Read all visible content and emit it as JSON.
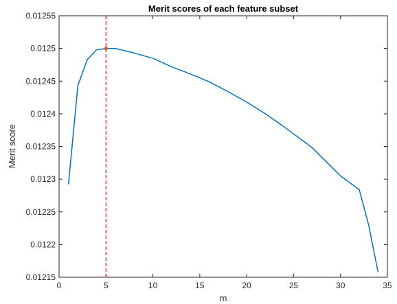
{
  "chart_data": {
    "type": "line",
    "title": "Merit scores of each feature subset",
    "xlabel": "m",
    "ylabel": "Merit score",
    "xlim": [
      0,
      35
    ],
    "ylim": [
      0.01215,
      0.01255
    ],
    "xticks": [
      "0",
      "5",
      "10",
      "15",
      "20",
      "25",
      "30",
      "35"
    ],
    "yticks": [
      "0.01215",
      "0.0122",
      "0.01225",
      "0.0123",
      "0.01235",
      "0.0124",
      "0.01245",
      "0.0125",
      "0.01255"
    ],
    "grid": false,
    "series": [
      {
        "color": "#0072bd",
        "x": [
          1,
          2,
          3,
          4,
          5,
          6,
          8,
          10,
          12,
          14,
          16,
          18,
          20,
          22,
          24,
          27,
          30,
          32,
          33,
          34
        ],
        "y": [
          0.012292,
          0.012443,
          0.012483,
          0.012498,
          0.0125,
          0.0125,
          0.012493,
          0.012485,
          0.012472,
          0.012461,
          0.012449,
          0.012434,
          0.012418,
          0.0124,
          0.01238,
          0.012348,
          0.012305,
          0.012284,
          0.01223,
          0.012158
        ]
      }
    ],
    "annotations": [
      {
        "type": "vline",
        "x": 5,
        "color": "#d62728",
        "style": "dashed"
      },
      {
        "type": "point",
        "x": 5,
        "y": 0.0125,
        "color": "#d95319"
      }
    ]
  }
}
